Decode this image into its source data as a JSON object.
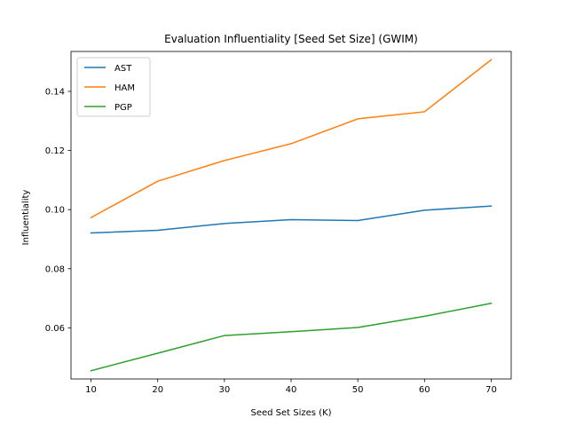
{
  "chart_data": {
    "type": "line",
    "title": "Evaluation Influentiality [Seed Set Size] (GWIM)",
    "xlabel": "Seed Set Sizes (K)",
    "ylabel": "Influentiality",
    "x": [
      10,
      20,
      30,
      40,
      50,
      60,
      70
    ],
    "xticks": [
      "10",
      "20",
      "30",
      "40",
      "50",
      "60",
      "70"
    ],
    "yticks": [
      0.06,
      0.08,
      0.1,
      0.12,
      0.14
    ],
    "ytick_labels": [
      "0.06",
      "0.08",
      "0.10",
      "0.12",
      "0.14"
    ],
    "xlim": [
      7,
      73
    ],
    "ylim": [
      0.0427,
      0.1535
    ],
    "legend_position": "top-left",
    "grid": false,
    "series": [
      {
        "name": "AST",
        "color": "#1f77b4",
        "values": [
          0.0921,
          0.093,
          0.0953,
          0.0966,
          0.0963,
          0.0998,
          0.1012
        ]
      },
      {
        "name": "HAM",
        "color": "#ff7f0e",
        "values": [
          0.0973,
          0.1096,
          0.1166,
          0.1223,
          0.1307,
          0.1331,
          0.1507
        ]
      },
      {
        "name": "PGP",
        "color": "#2ca02c",
        "values": [
          0.0455,
          0.0514,
          0.0574,
          0.0587,
          0.0601,
          0.0639,
          0.0683
        ]
      }
    ]
  }
}
